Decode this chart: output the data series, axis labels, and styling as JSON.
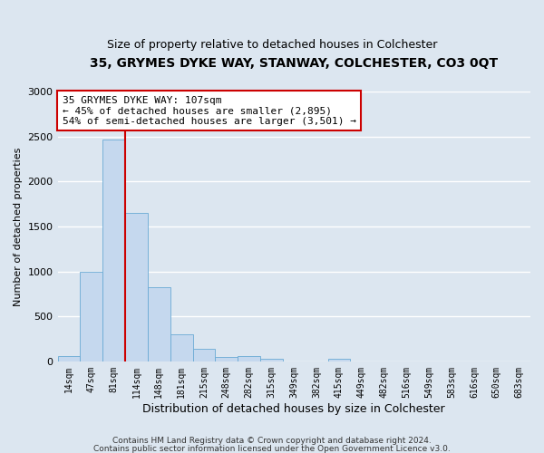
{
  "title": "35, GRYMES DYKE WAY, STANWAY, COLCHESTER, CO3 0QT",
  "subtitle": "Size of property relative to detached houses in Colchester",
  "xlabel": "Distribution of detached houses by size in Colchester",
  "ylabel": "Number of detached properties",
  "bin_labels": [
    "14sqm",
    "47sqm",
    "81sqm",
    "114sqm",
    "148sqm",
    "181sqm",
    "215sqm",
    "248sqm",
    "282sqm",
    "315sqm",
    "349sqm",
    "382sqm",
    "415sqm",
    "449sqm",
    "482sqm",
    "516sqm",
    "549sqm",
    "583sqm",
    "616sqm",
    "650sqm",
    "683sqm"
  ],
  "bar_heights": [
    60,
    1000,
    2470,
    1650,
    830,
    300,
    140,
    50,
    55,
    30,
    0,
    0,
    30,
    0,
    0,
    0,
    0,
    0,
    0,
    0,
    0
  ],
  "bar_color": "#c5d8ee",
  "bar_edgecolor": "#6aaad4",
  "property_line_x": 2.5,
  "property_line_color": "#cc0000",
  "ylim": [
    0,
    3000
  ],
  "yticks": [
    0,
    500,
    1000,
    1500,
    2000,
    2500,
    3000
  ],
  "annotation_text": "35 GRYMES DYKE WAY: 107sqm\n← 45% of detached houses are smaller (2,895)\n54% of semi-detached houses are larger (3,501) →",
  "annotation_box_color": "#ffffff",
  "annotation_border_color": "#cc0000",
  "footer_line1": "Contains HM Land Registry data © Crown copyright and database right 2024.",
  "footer_line2": "Contains public sector information licensed under the Open Government Licence v3.0.",
  "background_color": "#dce6f0",
  "grid_color": "#ffffff"
}
